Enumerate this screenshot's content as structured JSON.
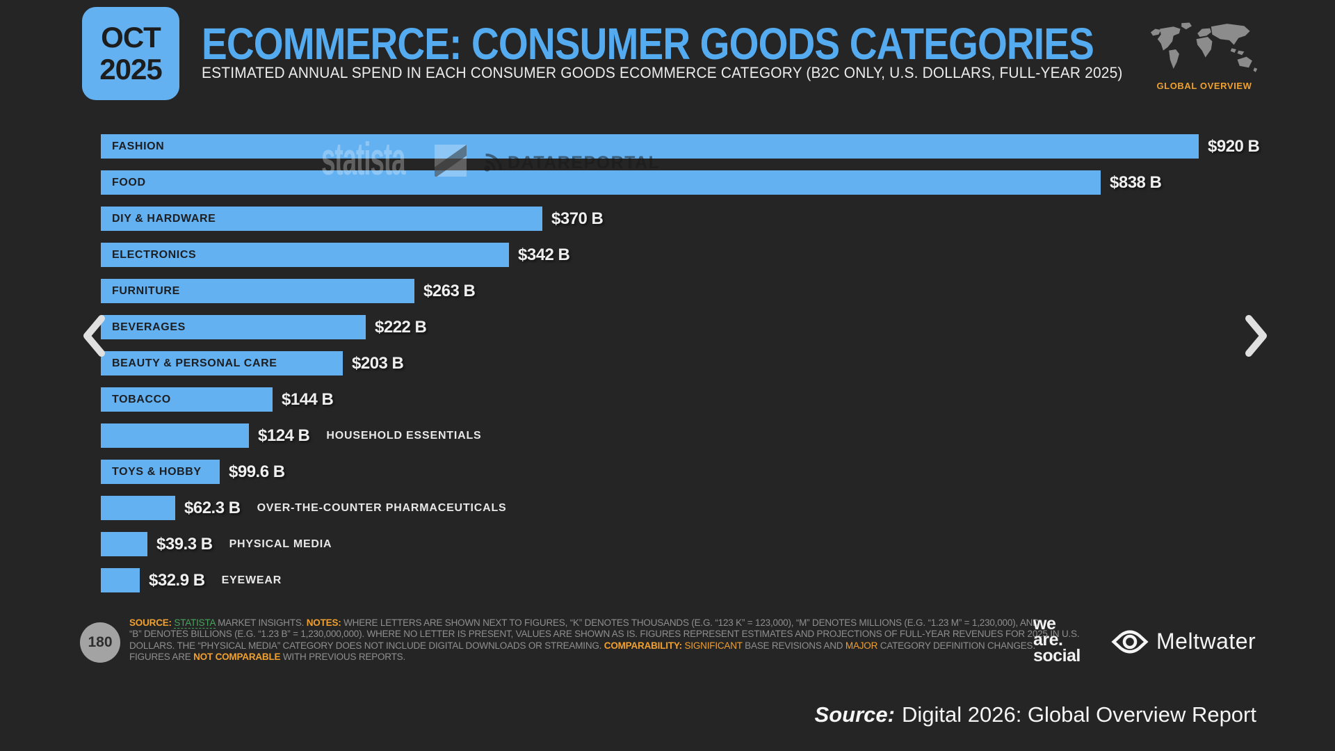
{
  "header": {
    "date_badge": {
      "month": "OCT",
      "year": "2025"
    },
    "title": "ECOMMERCE: CONSUMER GOODS CATEGORIES",
    "subtitle": "ESTIMATED ANNUAL SPEND IN EACH CONSUMER GOODS ECOMMERCE CATEGORY (B2C ONLY, U.S. DOLLARS, FULL-YEAR 2025)",
    "section_tag": "GLOBAL OVERVIEW"
  },
  "chart_data": {
    "type": "bar",
    "orientation": "horizontal",
    "unit": "U.S. dollars, billions, full-year 2025",
    "xlim": [
      0,
      920
    ],
    "bar_color": "#63B1F1",
    "categories": [
      "FASHION",
      "FOOD",
      "DIY & HARDWARE",
      "ELECTRONICS",
      "FURNITURE",
      "BEVERAGES",
      "BEAUTY & PERSONAL CARE",
      "TOBACCO",
      "HOUSEHOLD ESSENTIALS",
      "TOYS & HOBBY",
      "OVER-THE-COUNTER PHARMACEUTICALS",
      "PHYSICAL MEDIA",
      "EYEWEAR"
    ],
    "values": [
      920,
      838,
      370,
      342,
      263,
      222,
      203,
      144,
      124,
      99.6,
      62.3,
      39.3,
      32.9
    ],
    "value_labels": [
      "$920 B",
      "$838 B",
      "$370 B",
      "$342 B",
      "$263 B",
      "$222 B",
      "$203 B",
      "$144 B",
      "$124 B",
      "$99.6 B",
      "$62.3 B",
      "$39.3 B",
      "$32.9 B"
    ],
    "label_placement": [
      "inside",
      "inside",
      "inside",
      "inside",
      "inside",
      "inside",
      "inside",
      "inside",
      "outside",
      "inside",
      "outside",
      "outside",
      "outside"
    ]
  },
  "watermarks": {
    "statista": "statista",
    "datareportal": "DATAREPORTAL"
  },
  "footer": {
    "page_number": "180",
    "note_lines": [
      [
        {
          "t": "SOURCE: ",
          "s": "sob"
        },
        {
          "t": "STATISTA",
          "s": "sgl"
        },
        {
          "t": " MARKET INSIGHTS. ",
          "s": "sg"
        },
        {
          "t": "NOTES: ",
          "s": "sob"
        },
        {
          "t": "WHERE LETTERS ARE SHOWN NEXT TO FIGURES, “K” DENOTES THOUSANDS (E.G. “123 K” = 123,000), “M” DENOTES MILLIONS (E.G. “1.23 M” = 1,230,000), AND",
          "s": "sg"
        }
      ],
      [
        {
          "t": "“B” DENOTES BILLIONS (E.G. “1.23 B” = 1,230,000,000). WHERE NO LETTER IS PRESENT, VALUES ARE SHOWN AS IS. FIGURES REPRESENT ESTIMATES AND PROJECTIONS OF FULL-YEAR REVENUES FOR 2025 IN U.S.",
          "s": "sg"
        }
      ],
      [
        {
          "t": "DOLLARS. THE “PHYSICAL MEDIA” CATEGORY DOES NOT INCLUDE DIGITAL DOWNLOADS OR STREAMING. ",
          "s": "sg"
        },
        {
          "t": "COMPARABILITY: ",
          "s": "sob"
        },
        {
          "t": "SIGNIFICANT",
          "s": "so"
        },
        {
          "t": " BASE REVISIONS AND ",
          "s": "sg"
        },
        {
          "t": "MAJOR",
          "s": "so"
        },
        {
          "t": " CATEGORY DEFINITION CHANGES.",
          "s": "sg"
        }
      ],
      [
        {
          "t": "FIGURES ARE ",
          "s": "sg"
        },
        {
          "t": "NOT COMPARABLE",
          "s": "sob"
        },
        {
          "t": " WITH PREVIOUS REPORTS.",
          "s": "sg"
        }
      ]
    ]
  },
  "branding": {
    "we_are_social_lines": [
      "we",
      "are.",
      "social"
    ],
    "meltwater": "Meltwater"
  },
  "source_line": {
    "prefix": "Source:",
    "text": "Digital 2026: Global Overview Report"
  }
}
